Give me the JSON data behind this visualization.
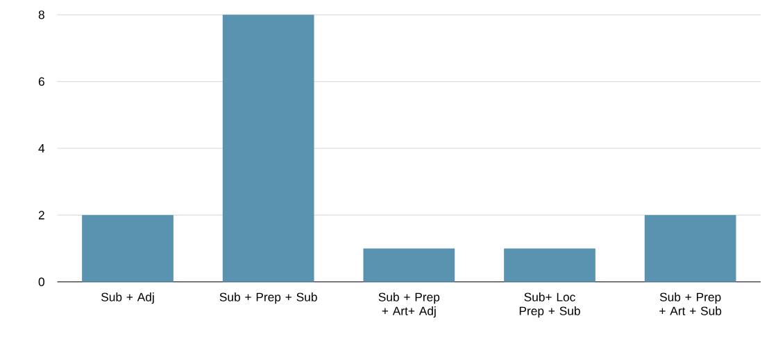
{
  "chart_data": {
    "type": "bar",
    "categories": [
      "Sub + Adj",
      "Sub + Prep + Sub",
      "Sub + Prep + Art+ Adj",
      "Sub+ Loc Prep + Sub",
      "Sub + Prep + Art + Sub"
    ],
    "values": [
      2,
      8,
      1,
      1,
      2
    ],
    "color": "#5a93b0",
    "ylim": [
      0,
      8
    ],
    "yticks": [
      0,
      2,
      4,
      6,
      8
    ],
    "grid": "y"
  }
}
